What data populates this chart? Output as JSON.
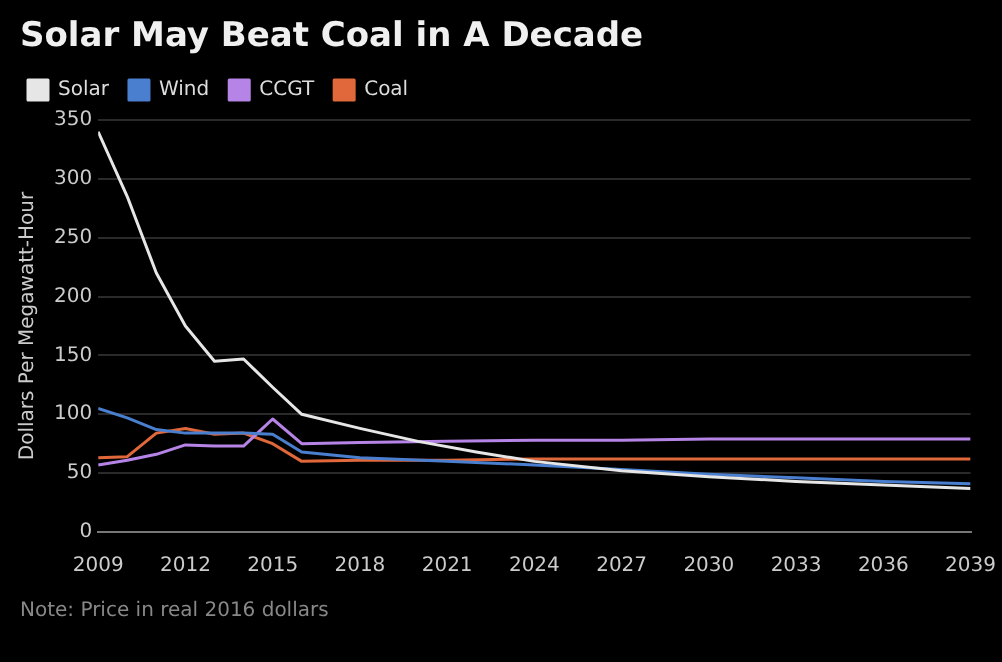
{
  "chart_data": {
    "type": "line",
    "title": "Solar May Beat Coal in A Decade",
    "ylabel": "Dollars Per Megawatt-Hour",
    "annotations": [
      "Note: Price in real 2016 dollars"
    ],
    "xlim": [
      2009,
      2039
    ],
    "xticks": [
      2009,
      2012,
      2015,
      2018,
      2021,
      2024,
      2027,
      2030,
      2033,
      2036,
      2039
    ],
    "ylim": [
      0,
      350
    ],
    "yticks": [
      0,
      50,
      100,
      150,
      200,
      250,
      300,
      350
    ],
    "grid": "y",
    "legend": "top left",
    "marker": "none",
    "line_style": "solid",
    "series": [
      {
        "name": "Solar",
        "color": "#e6e6e6",
        "x": [
          2009,
          2010,
          2011,
          2012,
          2013,
          2014,
          2015,
          2016,
          2018,
          2020,
          2022,
          2024,
          2027,
          2030,
          2033,
          2036,
          2039
        ],
        "values": [
          340,
          285,
          220,
          175,
          145,
          147,
          123,
          100,
          88,
          77,
          68,
          60,
          52,
          47,
          43,
          40,
          37
        ]
      },
      {
        "name": "Wind",
        "color": "#4a7fd0",
        "x": [
          2009,
          2010,
          2011,
          2012,
          2013,
          2014,
          2015,
          2016,
          2018,
          2021,
          2024,
          2027,
          2030,
          2033,
          2036,
          2039
        ],
        "values": [
          105,
          97,
          87,
          84,
          84,
          84,
          83,
          68,
          63,
          60,
          57,
          53,
          49,
          46,
          43,
          41
        ]
      },
      {
        "name": "CCGT",
        "color": "#b584e6",
        "x": [
          2009,
          2010,
          2011,
          2012,
          2013,
          2014,
          2015,
          2016,
          2018,
          2021,
          2024,
          2027,
          2030,
          2033,
          2036,
          2039
        ],
        "values": [
          57,
          61,
          66,
          74,
          73,
          73,
          96,
          75,
          76,
          77,
          78,
          78,
          79,
          79,
          79,
          79
        ]
      },
      {
        "name": "Coal",
        "color": "#e0683a",
        "x": [
          2009,
          2010,
          2011,
          2012,
          2013,
          2014,
          2015,
          2016,
          2018,
          2021,
          2024,
          2027,
          2030,
          2033,
          2036,
          2039
        ],
        "values": [
          63,
          64,
          84,
          88,
          83,
          84,
          75,
          60,
          61,
          61,
          62,
          62,
          62,
          62,
          62,
          62
        ]
      }
    ]
  }
}
